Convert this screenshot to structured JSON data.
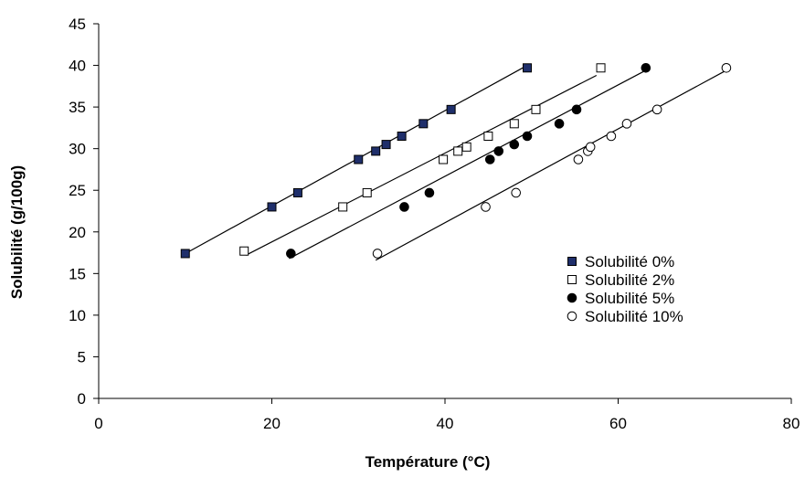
{
  "chart_data": {
    "type": "scatter",
    "title": "",
    "xlabel": "Température (°C)",
    "ylabel": "Solubilité (g/100g)",
    "xlim": [
      0,
      80
    ],
    "ylim": [
      0,
      45
    ],
    "x_ticks": [
      "0",
      "20",
      "40",
      "60",
      "80"
    ],
    "y_ticks": [
      "0",
      "5",
      "10",
      "15",
      "20",
      "25",
      "30",
      "35",
      "40",
      "45"
    ],
    "grid": false,
    "legend_position": "right",
    "series": [
      {
        "name": "Solubilité 0%",
        "marker": "filled-square",
        "color": "#1f2f6b",
        "points": [
          [
            10,
            17.4
          ],
          [
            20,
            23
          ],
          [
            23,
            24.7
          ],
          [
            30,
            28.7
          ],
          [
            32,
            29.7
          ],
          [
            33.2,
            30.5
          ],
          [
            35,
            31.5
          ],
          [
            37.5,
            33
          ],
          [
            40.7,
            34.7
          ],
          [
            49.5,
            39.7
          ]
        ],
        "trendline": [
          [
            10,
            17.4
          ],
          [
            49.5,
            40
          ]
        ]
      },
      {
        "name": "Solubilité 2%",
        "marker": "open-square",
        "color": "#000000",
        "points": [
          [
            16.8,
            17.7
          ],
          [
            28.2,
            23
          ],
          [
            31,
            24.7
          ],
          [
            39.8,
            28.7
          ],
          [
            41.5,
            29.7
          ],
          [
            42.5,
            30.2
          ],
          [
            45,
            31.5
          ],
          [
            48,
            33
          ],
          [
            50.5,
            34.7
          ],
          [
            58,
            39.7
          ]
        ],
        "trendline": [
          [
            17,
            17.2
          ],
          [
            57.5,
            38.8
          ]
        ]
      },
      {
        "name": "Solubilité 5%",
        "marker": "filled-circle",
        "color": "#000000",
        "points": [
          [
            22.2,
            17.4
          ],
          [
            35.3,
            23
          ],
          [
            38.2,
            24.7
          ],
          [
            45.2,
            28.7
          ],
          [
            46.2,
            29.7
          ],
          [
            48,
            30.5
          ],
          [
            49.5,
            31.5
          ],
          [
            53.2,
            33
          ],
          [
            55.2,
            34.7
          ],
          [
            63.2,
            39.7
          ]
        ],
        "trendline": [
          [
            22,
            16.8
          ],
          [
            63,
            39.3
          ]
        ]
      },
      {
        "name": "Solubilité 10%",
        "marker": "open-circle",
        "color": "#000000",
        "points": [
          [
            32.2,
            17.4
          ],
          [
            44.7,
            23
          ],
          [
            48.2,
            24.7
          ],
          [
            55.4,
            28.7
          ],
          [
            56.5,
            29.7
          ],
          [
            56.8,
            30.2
          ],
          [
            59.2,
            31.5
          ],
          [
            61,
            33
          ],
          [
            64.5,
            34.7
          ],
          [
            72.5,
            39.7
          ]
        ],
        "trendline": [
          [
            32,
            16.6
          ],
          [
            72.3,
            39.3
          ]
        ]
      }
    ]
  }
}
